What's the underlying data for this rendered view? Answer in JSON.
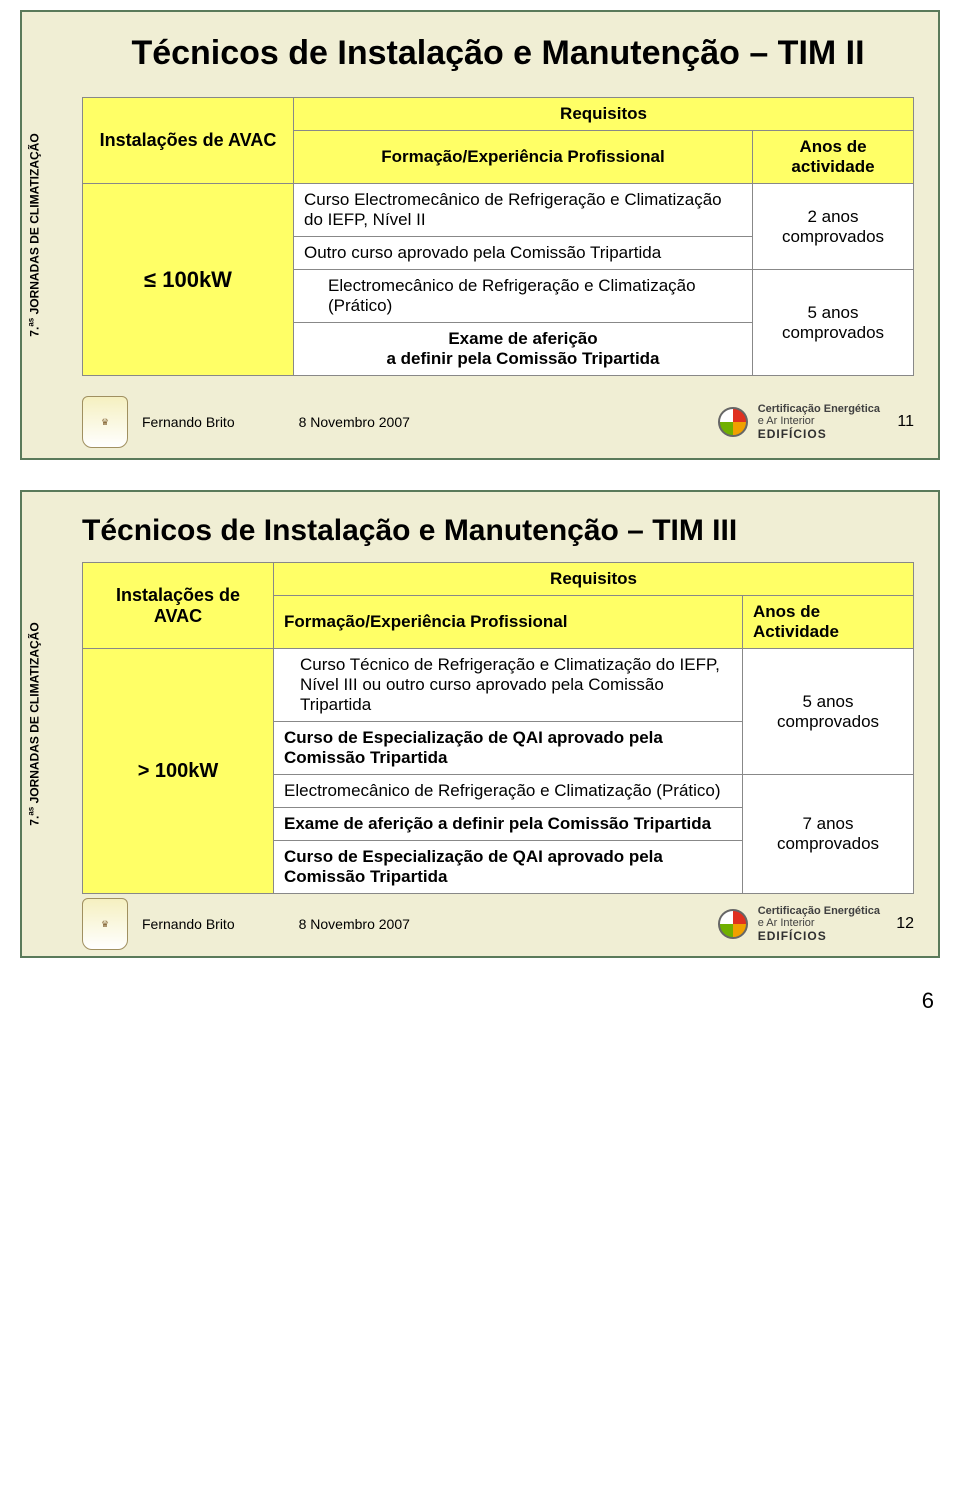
{
  "side_label_html": "7.<sup>as</sup> JORNADAS DE CLIMATIZAÇÃO",
  "footer": {
    "author": "Fernando Brito",
    "date": "8 Novembro 2007",
    "cert_line1": "Certificação Energética",
    "cert_line2": "e Ar Interior",
    "cert_line3": "EDIFÍCIOS"
  },
  "colors": {
    "slide_bg": "#f0eed4",
    "slide_border": "#5a7a5a",
    "header_bg": "#ffff66",
    "cell_border": "#888888",
    "table_bg": "#ffffff"
  },
  "slide1": {
    "title": "Técnicos de Instalação e Manutenção – TIM II",
    "table": {
      "c_instalacoes": "Instalações de AVAC",
      "c_requisitos": "Requisitos",
      "c_formacao": "Formação/Experiência Profissional",
      "c_anos": "Anos de actividade",
      "row_cap": "≤ 100kW",
      "r1": "Curso Electromecânico de Refrigeração e Climatização do IEFP, Nível II",
      "r2": "Outro curso aprovado pela Comissão Tripartida",
      "r3": "Electromecânico de Refrigeração e Climatização (Prático)",
      "r4": "Exame de aferição\na definir pela Comissão Tripartida",
      "anos1": "2 anos comprovados",
      "anos2": "5 anos comprovados"
    },
    "page": "11"
  },
  "slide2": {
    "title": "Técnicos de Instalação e Manutenção – TIM III",
    "table": {
      "c_instalacoes": "Instalações de AVAC",
      "c_requisitos": "Requisitos",
      "c_formacao": "Formação/Experiência Profissional",
      "c_anos": "Anos de Actividade",
      "row_cap": "> 100kW",
      "r1": "Curso Técnico de Refrigeração e Climatização do IEFP, Nível III ou outro curso aprovado pela Comissão Tripartida",
      "r2": "Curso de Especialização de QAI aprovado pela Comissão Tripartida",
      "r3": "Electromecânico de Refrigeração e Climatização (Prático)",
      "r4": "Exame de aferição a definir pela Comissão Tripartida",
      "r5": "Curso de Especialização de QAI aprovado pela Comissão Tripartida",
      "anos1": "5 anos comprovados",
      "anos2": "7 anos comprovados"
    },
    "page": "12"
  },
  "doc_page": "6"
}
